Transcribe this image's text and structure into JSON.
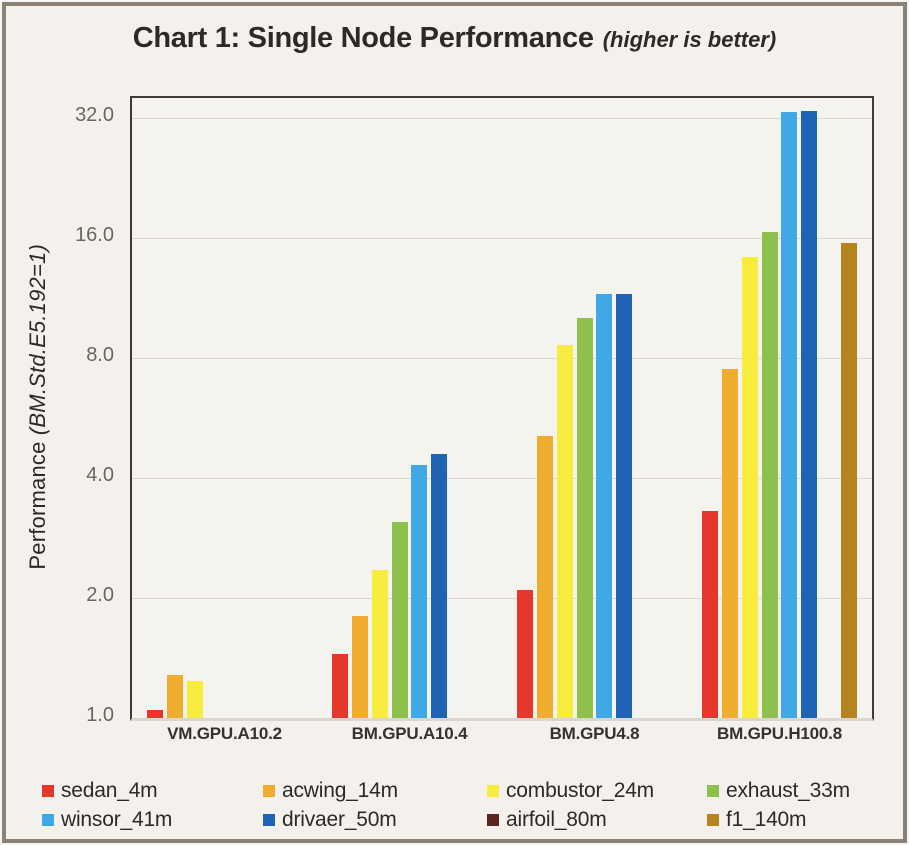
{
  "colors": {
    "background": "#f4f1ec",
    "outer_border": "#8b8277",
    "axis_line": "#3e3a36",
    "gridline": "#d9d6d0",
    "tick_text": "#6b655f",
    "text": "#2d2a26"
  },
  "chart_data": {
    "type": "bar",
    "title": "Chart 1: Single Node Performance",
    "title_note": "(higher is better)",
    "ylabel": "Performance ",
    "ylabel_note": "(BM.Std.E5.192=1)",
    "y_scale": "log2",
    "y_ticks": [
      1.0,
      2.0,
      4.0,
      8.0,
      16.0,
      32.0
    ],
    "y_range": [
      1.0,
      36.0
    ],
    "grid": true,
    "legend_position": "bottom",
    "categories": [
      "VM.GPU.A10.2",
      "BM.GPU.A10.4",
      "BM.GPU4.8",
      "BM.GPU.H100.8"
    ],
    "series": [
      {
        "name": "sedan_4m",
        "color": "#e5372b",
        "values": [
          1.05,
          1.45,
          2.1,
          3.3
        ]
      },
      {
        "name": "acwing_14m",
        "color": "#f0ac2e",
        "values": [
          1.28,
          1.8,
          5.1,
          7.5
        ]
      },
      {
        "name": "combustor_24m",
        "color": "#f8ec3e",
        "values": [
          1.24,
          2.35,
          8.6,
          14.3
        ]
      },
      {
        "name": "exhaust_33m",
        "color": "#8ec04d",
        "values": [
          null,
          3.1,
          10.1,
          16.6
        ]
      },
      {
        "name": "winsor_41m",
        "color": "#3fa8e7",
        "values": [
          null,
          4.3,
          11.6,
          33.2
        ]
      },
      {
        "name": "drivaer_50m",
        "color": "#1e63b4",
        "values": [
          null,
          4.6,
          11.6,
          33.4
        ]
      },
      {
        "name": "airfoil_80m",
        "color": "#5a2420",
        "values": [
          null,
          null,
          null,
          null
        ]
      },
      {
        "name": "f1_140m",
        "color": "#b5831f",
        "values": [
          null,
          null,
          null,
          15.5
        ]
      }
    ]
  }
}
